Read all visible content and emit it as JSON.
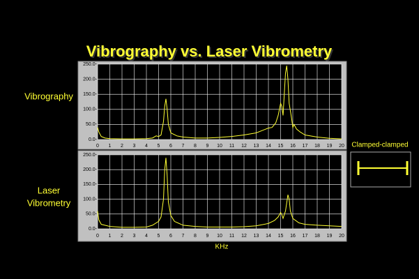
{
  "header": {
    "title": "Vibrography vs. Laser Vibrometry"
  },
  "inset": {
    "label": "Clamped-clamped"
  },
  "chart_data": [
    {
      "type": "line",
      "ylabel_lines": [
        "Vibrography"
      ],
      "x": [
        0,
        0.1,
        0.3,
        0.6,
        1,
        2,
        3,
        4,
        4.5,
        4.8,
        5,
        5.2,
        5.4,
        5.5,
        5.6,
        5.7,
        5.8,
        6,
        6.5,
        7,
        8,
        9,
        10,
        11,
        12,
        13,
        13.5,
        14,
        14.3,
        14.6,
        14.8,
        15,
        15.1,
        15.2,
        15.3,
        15.4,
        15.5,
        15.6,
        15.7,
        15.9,
        16,
        16.1,
        16.3,
        16.6,
        17,
        18,
        19,
        20
      ],
      "series": [
        {
          "color": "#ffff33",
          "values": [
            40,
            25,
            10,
            5,
            3,
            2,
            2,
            3,
            5,
            12,
            10,
            15,
            60,
            110,
            135,
            100,
            50,
            22,
            12,
            8,
            5,
            5,
            7,
            10,
            15,
            22,
            30,
            38,
            40,
            55,
            80,
            120,
            110,
            80,
            150,
            220,
            245,
            200,
            120,
            70,
            40,
            50,
            35,
            25,
            15,
            8,
            4,
            2
          ]
        }
      ],
      "xlim": [
        0,
        20
      ],
      "xticks": [
        0,
        1,
        2,
        3,
        4,
        5,
        6,
        7,
        8,
        9,
        10,
        11,
        12,
        13,
        14,
        15,
        16,
        17,
        18,
        19,
        20
      ],
      "ylim": [
        0,
        250
      ],
      "yticks": [
        {
          "value": 0,
          "label": "0.0-"
        },
        {
          "value": 50,
          "label": "50.0-"
        },
        {
          "value": 100,
          "label": "100.0-"
        },
        {
          "value": 150,
          "label": "150.0-"
        },
        {
          "value": 200,
          "label": "200.0-"
        },
        {
          "value": 250,
          "label": "250.0-"
        }
      ],
      "grid": true
    },
    {
      "type": "line",
      "ylabel_lines": [
        "Laser",
        "Vibrometry"
      ],
      "xlabel": "KHz",
      "x": [
        0,
        0.1,
        0.3,
        1,
        2,
        3,
        4,
        4.5,
        5,
        5.2,
        5.4,
        5.5,
        5.6,
        5.7,
        5.8,
        6,
        6.3,
        7,
        8,
        9,
        10,
        11,
        12,
        13,
        14,
        14.5,
        14.8,
        15,
        15.1,
        15.2,
        15.4,
        15.6,
        15.7,
        15.8,
        16,
        16.5,
        17,
        18,
        19,
        20
      ],
      "series": [
        {
          "color": "#ffff33",
          "values": [
            60,
            30,
            15,
            8,
            5,
            5,
            6,
            12,
            25,
            40,
            100,
            200,
            240,
            180,
            90,
            45,
            25,
            12,
            8,
            6,
            6,
            6,
            7,
            10,
            18,
            28,
            40,
            55,
            48,
            35,
            60,
            115,
            100,
            60,
            35,
            20,
            15,
            12,
            10,
            8
          ]
        }
      ],
      "xlim": [
        0,
        20
      ],
      "xticks": [
        0,
        1,
        2,
        3,
        4,
        5,
        6,
        7,
        8,
        9,
        10,
        11,
        12,
        13,
        14,
        15,
        16,
        17,
        18,
        19,
        20
      ],
      "ylim": [
        0,
        250
      ],
      "yticks": [
        {
          "value": 0,
          "label": "0.0-"
        },
        {
          "value": 50,
          "label": "50.0-"
        },
        {
          "value": 100,
          "label": "100.0-"
        },
        {
          "value": 150,
          "label": "150.0-"
        },
        {
          "value": 200,
          "label": "200.0-"
        },
        {
          "value": 250,
          "label": "250.0-"
        }
      ],
      "grid": true
    }
  ]
}
